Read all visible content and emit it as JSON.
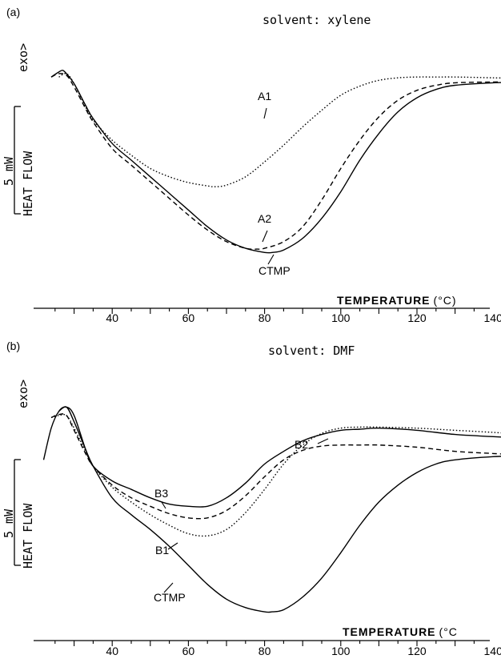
{
  "chart_data": [
    {
      "type": "line",
      "panel_label": "(a)",
      "title": "solvent:  xylene",
      "xlabel": "TEMPERATURE",
      "xunit": "(°C)",
      "ylabel": "HEAT FLOW",
      "exo_label": "exo>",
      "scale_bar_label": "5 mW",
      "xlim": [
        20,
        155
      ],
      "ylim": [
        -11.5,
        1.5
      ],
      "xticks": [
        40,
        60,
        80,
        100,
        120,
        140
      ],
      "series": [
        {
          "name": "A1",
          "style": "dotted",
          "x": [
            26,
            28,
            30,
            33,
            35,
            40,
            45,
            50,
            55,
            60,
            65,
            67,
            70,
            75,
            80,
            85,
            90,
            95,
            100,
            105,
            110,
            115,
            120,
            125,
            130,
            140,
            150,
            155
          ],
          "y": [
            0,
            0.2,
            -0.4,
            -1.8,
            -2.6,
            -3.8,
            -4.7,
            -5.5,
            -6.0,
            -6.35,
            -6.55,
            -6.6,
            -6.5,
            -6.0,
            -5.1,
            -4.1,
            -3.0,
            -2.0,
            -1.1,
            -0.55,
            -0.2,
            -0.05,
            0.0,
            0.0,
            0.0,
            -0.05,
            -0.1,
            -0.15
          ]
        },
        {
          "name": "A2",
          "style": "dashed",
          "x": [
            24,
            26,
            28,
            30,
            33,
            35,
            40,
            45,
            50,
            55,
            60,
            65,
            70,
            75,
            78,
            80,
            85,
            90,
            95,
            100,
            105,
            110,
            115,
            120,
            125,
            130,
            140,
            150
          ],
          "y": [
            0,
            0.2,
            0.1,
            -0.6,
            -1.9,
            -2.7,
            -4.3,
            -5.3,
            -6.3,
            -7.3,
            -8.3,
            -9.2,
            -9.9,
            -10.3,
            -10.35,
            -10.3,
            -9.9,
            -9.0,
            -7.4,
            -5.5,
            -3.8,
            -2.4,
            -1.4,
            -0.8,
            -0.5,
            -0.35,
            -0.3,
            -0.3
          ]
        },
        {
          "name": "CTMP",
          "style": "solid",
          "x": [
            24,
            26,
            27,
            28,
            30,
            33,
            35,
            40,
            45,
            50,
            55,
            60,
            65,
            70,
            75,
            80,
            82,
            85,
            90,
            95,
            100,
            105,
            110,
            115,
            120,
            125,
            130,
            140,
            150
          ],
          "y": [
            0,
            0.3,
            0.4,
            0.2,
            -0.4,
            -1.7,
            -2.5,
            -4.0,
            -5.0,
            -6.0,
            -7.0,
            -8.0,
            -9.0,
            -9.8,
            -10.3,
            -10.55,
            -10.55,
            -10.4,
            -9.7,
            -8.5,
            -6.9,
            -5.0,
            -3.4,
            -2.1,
            -1.25,
            -0.75,
            -0.5,
            -0.35,
            -0.3
          ]
        }
      ]
    },
    {
      "type": "line",
      "panel_label": "(b)",
      "title": "solvent:  DMF",
      "xlabel": "TEMPERATURE",
      "xunit": "(°C",
      "ylabel": "HEAT FLOW",
      "exo_label": "exo>",
      "scale_bar_label": "5 mW",
      "xlim": [
        20,
        155
      ],
      "ylim": [
        -9.5,
        1.5
      ],
      "xticks": [
        40,
        60,
        80,
        100,
        120,
        140
      ],
      "series": [
        {
          "name": "B1",
          "style": "dotted",
          "x": [
            24,
            26,
            28,
            30,
            33,
            35,
            40,
            45,
            50,
            55,
            60,
            65,
            70,
            75,
            80,
            85,
            90,
            95,
            100,
            105,
            110,
            120,
            130,
            140,
            150,
            155
          ],
          "y": [
            0,
            0.1,
            0.1,
            -0.5,
            -1.6,
            -2.3,
            -3.3,
            -4.0,
            -4.6,
            -5.1,
            -5.5,
            -5.6,
            -5.3,
            -4.5,
            -3.4,
            -2.2,
            -1.3,
            -0.75,
            -0.5,
            -0.45,
            -0.45,
            -0.5,
            -0.6,
            -0.7,
            -0.8,
            -0.8
          ]
        },
        {
          "name": "B2",
          "style": "dashed",
          "x": [
            24,
            26,
            28,
            30,
            33,
            35,
            40,
            45,
            50,
            55,
            60,
            65,
            70,
            75,
            80,
            85,
            90,
            95,
            100,
            105,
            110,
            120,
            130,
            140,
            150,
            155
          ],
          "y": [
            0,
            0.15,
            0.1,
            -0.6,
            -1.7,
            -2.3,
            -3.2,
            -3.8,
            -4.2,
            -4.55,
            -4.75,
            -4.75,
            -4.4,
            -3.7,
            -2.8,
            -2.0,
            -1.55,
            -1.35,
            -1.3,
            -1.3,
            -1.3,
            -1.4,
            -1.6,
            -1.7,
            -1.8,
            -1.85
          ]
        },
        {
          "name": "B3",
          "style": "solid",
          "x": [
            22,
            24,
            26,
            28,
            30,
            33,
            35,
            40,
            45,
            50,
            55,
            60,
            65,
            70,
            75,
            80,
            85,
            90,
            95,
            100,
            105,
            110,
            120,
            130,
            140,
            150,
            155
          ],
          "y": [
            -2.0,
            -0.5,
            0.3,
            0.5,
            0.1,
            -1.5,
            -2.3,
            -3.0,
            -3.4,
            -3.8,
            -4.1,
            -4.2,
            -4.2,
            -3.8,
            -3.1,
            -2.2,
            -1.6,
            -1.1,
            -0.8,
            -0.6,
            -0.55,
            -0.5,
            -0.6,
            -0.8,
            -0.9,
            -1.0,
            -1.05
          ]
        },
        {
          "name": "CTMP",
          "style": "solid",
          "x": [
            26,
            28,
            30,
            33,
            35,
            40,
            45,
            50,
            55,
            60,
            65,
            70,
            75,
            80,
            82,
            85,
            90,
            95,
            100,
            105,
            110,
            115,
            120,
            125,
            130,
            140,
            150
          ],
          "y": [
            0.3,
            0.5,
            -0.2,
            -1.5,
            -2.3,
            -3.8,
            -4.6,
            -5.3,
            -6.1,
            -7.0,
            -7.9,
            -8.6,
            -9.0,
            -9.2,
            -9.2,
            -9.1,
            -8.5,
            -7.6,
            -6.4,
            -5.1,
            -4.0,
            -3.2,
            -2.6,
            -2.2,
            -2.0,
            -1.85,
            -1.8
          ]
        }
      ]
    }
  ]
}
